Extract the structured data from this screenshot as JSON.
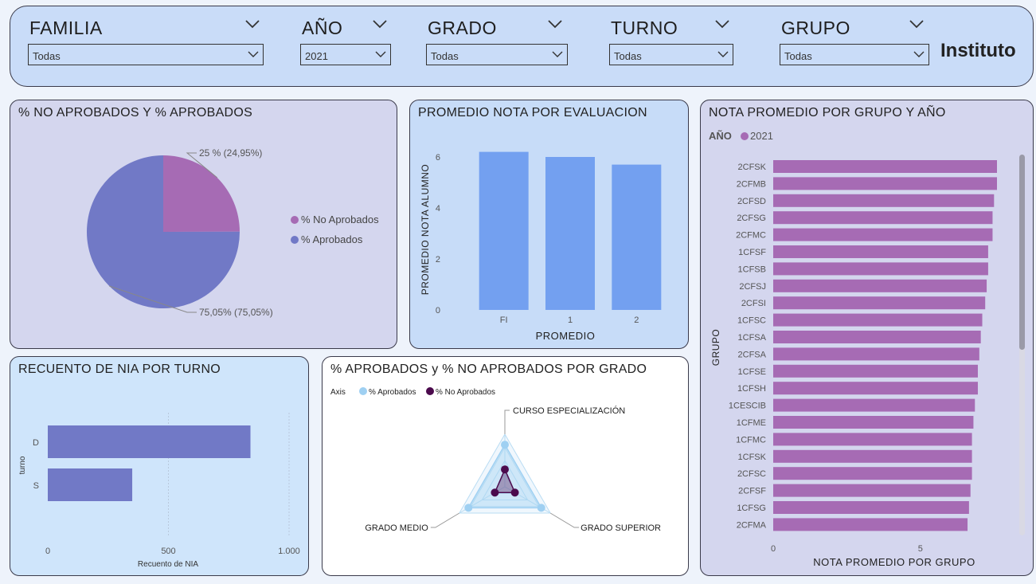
{
  "filters": [
    {
      "label": "FAMILIA",
      "value": "Todas"
    },
    {
      "label": "AÑO",
      "value": "2021"
    },
    {
      "label": "GRADO",
      "value": "Todas"
    },
    {
      "label": "TURNO",
      "value": "Todas"
    },
    {
      "label": "GRUPO",
      "value": "Todas"
    }
  ],
  "brand": "Instituto",
  "colors": {
    "filter_bg": "#c9dcf8",
    "purple": "#a66bb4",
    "slate": "#7179c6",
    "blue_bar": "#73a0f0",
    "radar_light": "#9fd0f2",
    "radar_dark": "#4b0a4d"
  },
  "panels": {
    "pie": {
      "title": "% NO APROBADOS Y % APROBADOS"
    },
    "eval": {
      "title": "PROMEDIO NOTA POR EVALUACION"
    },
    "group": {
      "title": "NOTA PROMEDIO POR GRUPO Y AÑO"
    },
    "turno": {
      "title": "RECUENTO DE NIA POR TURNO"
    },
    "radar": {
      "title": "% APROBADOS y % NO APROBADOS POR GRADO"
    }
  },
  "chart_data": [
    {
      "type": "pie",
      "title": "% NO APROBADOS Y % APROBADOS",
      "slices": [
        {
          "name": "% No Aprobados",
          "value": 24.95,
          "label": "25 % (24,95%)",
          "color": "#a66bb4"
        },
        {
          "name": "% Aprobados",
          "value": 75.05,
          "label": "75,05% (75,05%)",
          "color": "#7179c6"
        }
      ],
      "legend": "right"
    },
    {
      "type": "bar",
      "title": "PROMEDIO NOTA POR EVALUACION",
      "categories": [
        "FI",
        "1",
        "2"
      ],
      "values": [
        6.2,
        6.0,
        5.7
      ],
      "xlabel": "PROMEDIO",
      "ylabel": "PROMEDIO NOTA ALUMNO",
      "ylim": [
        0,
        6.5
      ],
      "yticks": [
        "0",
        "2",
        "4",
        "6"
      ],
      "color": "#73a0f0"
    },
    {
      "type": "bar",
      "orientation": "horizontal",
      "title": "NOTA PROMEDIO POR GRUPO Y AÑO",
      "legend_title": "AÑO",
      "series": [
        {
          "name": "2021",
          "color": "#a66bb4"
        }
      ],
      "categories": [
        "2CFSK",
        "2CFMB",
        "2CFSD",
        "2CFSG",
        "2CFMC",
        "1CFSF",
        "1CFSB",
        "2CFSJ",
        "2CFSI",
        "1CFSC",
        "1CFSA",
        "2CFSA",
        "1CFSE",
        "1CFSH",
        "1CESCIB",
        "1CFME",
        "1CFMC",
        "1CFSK",
        "2CFSC",
        "2CFSF",
        "1CFSG",
        "2CFMA"
      ],
      "values": [
        7.6,
        7.6,
        7.5,
        7.45,
        7.45,
        7.3,
        7.3,
        7.25,
        7.2,
        7.1,
        7.05,
        7.0,
        6.95,
        6.95,
        6.85,
        6.8,
        6.75,
        6.75,
        6.75,
        6.7,
        6.65,
        6.6
      ],
      "xlabel": "NOTA PROMEDIO POR GRUPO",
      "ylabel": "GRUPO",
      "xticks": [
        "0",
        "5"
      ],
      "xlim": [
        0,
        7.6
      ]
    },
    {
      "type": "bar",
      "orientation": "horizontal",
      "title": "RECUENTO DE NIA POR TURNO",
      "categories": [
        "D",
        "S"
      ],
      "values": [
        840,
        350
      ],
      "xlabel": "Recuento de NIA",
      "ylabel": "turno",
      "xlim": [
        0,
        1000
      ],
      "xticks": [
        "0",
        "500",
        "1.000"
      ],
      "color": "#7179c6"
    },
    {
      "type": "radar",
      "title": "% APROBADOS y % NO APROBADOS POR GRADO",
      "legend_title": "Axis",
      "axes": [
        "CURSO ESPECIALIZACIÓN",
        "GRADO SUPERIOR",
        "GRADO MEDIO"
      ],
      "series": [
        {
          "name": "% Aprobados",
          "values": [
            0.8,
            0.8,
            0.8
          ],
          "color": "#9fd0f2"
        },
        {
          "name": "% No Aprobados",
          "values": [
            0.33,
            0.22,
            0.22
          ],
          "color": "#4b0a4d"
        }
      ]
    }
  ]
}
